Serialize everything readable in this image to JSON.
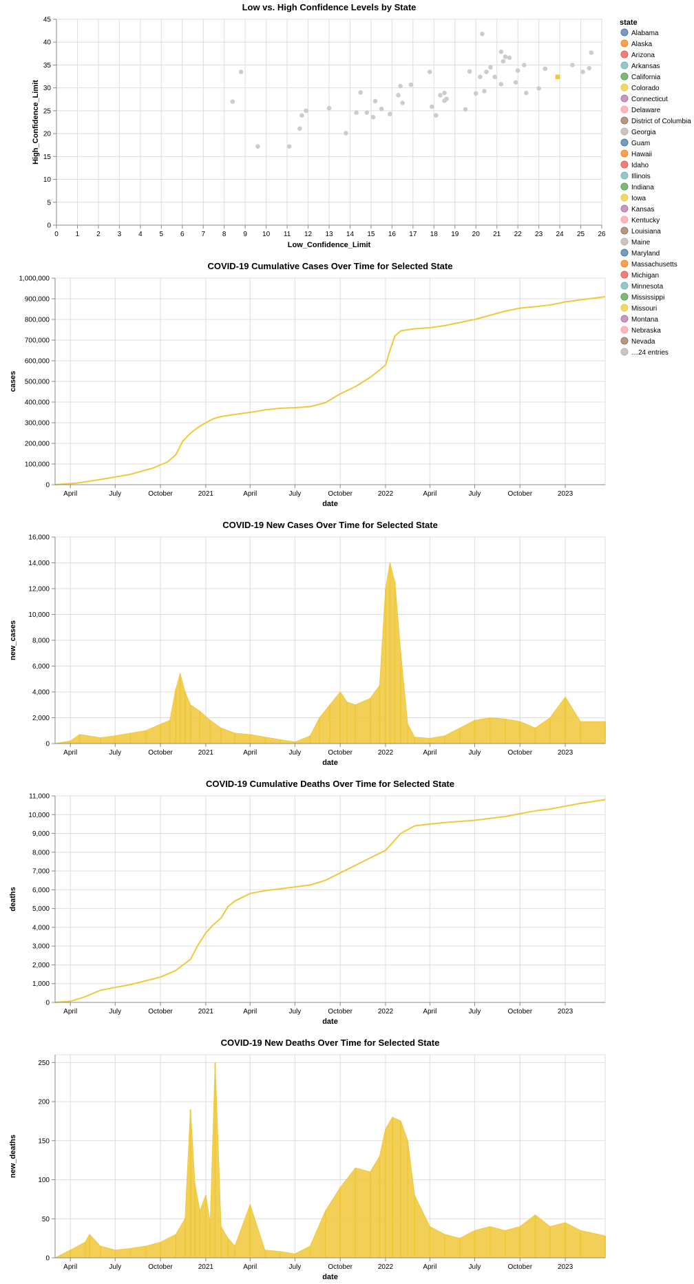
{
  "chart_data": [
    {
      "id": "scatter",
      "type": "scatter",
      "title": "Low vs. High Confidence Levels by State",
      "xlabel": "Low_Confidence_Limit",
      "ylabel": "High_Confidence_Limit",
      "xlim": [
        0,
        26
      ],
      "ylim": [
        0,
        45
      ],
      "xticks": [
        0,
        1,
        2,
        3,
        4,
        5,
        6,
        7,
        8,
        9,
        10,
        11,
        12,
        13,
        14,
        15,
        16,
        17,
        18,
        19,
        20,
        21,
        22,
        23,
        24,
        25,
        26
      ],
      "yticks": [
        0,
        5,
        10,
        15,
        20,
        25,
        30,
        35,
        40,
        45
      ],
      "point_color": "#cccccc",
      "highlight_color": "#f0c83a",
      "points": [
        [
          8.4,
          27
        ],
        [
          8.8,
          33.5
        ],
        [
          9.6,
          17.2
        ],
        [
          11.1,
          17.2
        ],
        [
          11.6,
          21.1
        ],
        [
          11.7,
          24
        ],
        [
          11.9,
          25
        ],
        [
          13,
          25.6
        ],
        [
          13.8,
          20.1
        ],
        [
          14.3,
          24.6
        ],
        [
          14.5,
          29
        ],
        [
          14.8,
          24.6
        ],
        [
          15.1,
          23.6
        ],
        [
          15.2,
          27.1
        ],
        [
          15.5,
          25.4
        ],
        [
          15.9,
          24.3
        ],
        [
          16.3,
          28.4
        ],
        [
          16.4,
          30.4
        ],
        [
          16.5,
          26.7
        ],
        [
          16.9,
          30.7
        ],
        [
          17.8,
          33.5
        ],
        [
          17.9,
          25.9
        ],
        [
          18.1,
          24
        ],
        [
          18.3,
          28.4
        ],
        [
          18.5,
          28.9
        ],
        [
          18.5,
          27.2
        ],
        [
          18.6,
          27.6
        ],
        [
          19.5,
          25.3
        ],
        [
          19.7,
          33.6
        ],
        [
          20,
          28.8
        ],
        [
          20.2,
          32.4
        ],
        [
          20.3,
          41.8
        ],
        [
          20.4,
          29.3
        ],
        [
          20.5,
          33.5
        ],
        [
          20.7,
          34.5
        ],
        [
          20.9,
          32.4
        ],
        [
          21.2,
          30.8
        ],
        [
          21.2,
          37.9
        ],
        [
          21.3,
          35.8
        ],
        [
          21.4,
          36.8
        ],
        [
          21.6,
          36.6
        ],
        [
          21.9,
          31.2
        ],
        [
          22,
          33.8
        ],
        [
          22.3,
          35
        ],
        [
          22.4,
          28.9
        ],
        [
          23,
          29.9
        ],
        [
          23.3,
          34.2
        ],
        [
          24.6,
          35
        ],
        [
          25.1,
          33.5
        ],
        [
          25.4,
          34.3
        ],
        [
          25.5,
          37.7
        ]
      ],
      "highlight_point": [
        23.9,
        32.4
      ],
      "legend": {
        "title": "state",
        "entries": [
          {
            "label": "Alabama",
            "color": "#4c78a8"
          },
          {
            "label": "Alaska",
            "color": "#f58518"
          },
          {
            "label": "Arizona",
            "color": "#e45756"
          },
          {
            "label": "Arkansas",
            "color": "#72b7b2"
          },
          {
            "label": "California",
            "color": "#54a24b"
          },
          {
            "label": "Colorado",
            "color": "#eeca3b"
          },
          {
            "label": "Connecticut",
            "color": "#b279a2"
          },
          {
            "label": "Delaware",
            "color": "#ff9da6"
          },
          {
            "label": "District of Columbia",
            "color": "#9d755d"
          },
          {
            "label": "Georgia",
            "color": "#bab0ac"
          },
          {
            "label": "Guam",
            "color": "#4c78a8"
          },
          {
            "label": "Hawaii",
            "color": "#f58518"
          },
          {
            "label": "Idaho",
            "color": "#e45756"
          },
          {
            "label": "Illinois",
            "color": "#72b7b2"
          },
          {
            "label": "Indiana",
            "color": "#54a24b"
          },
          {
            "label": "Iowa",
            "color": "#eeca3b"
          },
          {
            "label": "Kansas",
            "color": "#b279a2"
          },
          {
            "label": "Kentucky",
            "color": "#ff9da6"
          },
          {
            "label": "Louisiana",
            "color": "#9d755d"
          },
          {
            "label": "Maine",
            "color": "#bab0ac"
          },
          {
            "label": "Maryland",
            "color": "#4c78a8"
          },
          {
            "label": "Massachusetts",
            "color": "#f58518"
          },
          {
            "label": "Michigan",
            "color": "#e45756"
          },
          {
            "label": "Minnesota",
            "color": "#72b7b2"
          },
          {
            "label": "Mississippi",
            "color": "#54a24b"
          },
          {
            "label": "Missouri",
            "color": "#eeca3b"
          },
          {
            "label": "Montana",
            "color": "#b279a2"
          },
          {
            "label": "Nebraska",
            "color": "#ff9da6"
          },
          {
            "label": "Nevada",
            "color": "#9d755d"
          },
          {
            "label": "…24 entries",
            "color": "#bab0ac"
          }
        ]
      }
    },
    {
      "id": "cum_cases",
      "type": "line",
      "title": "COVID-19 Cumulative Cases Over Time for Selected State",
      "xlabel": "date",
      "ylabel": "cases",
      "xlim": [
        "2020-03-01",
        "2023-03-23"
      ],
      "ylim": [
        0,
        1000000
      ],
      "yticks": [
        0,
        100000,
        200000,
        300000,
        400000,
        500000,
        600000,
        700000,
        800000,
        900000,
        1000000
      ],
      "ytick_labels": [
        "0",
        "100,000",
        "200,000",
        "300,000",
        "400,000",
        "500,000",
        "600,000",
        "700,000",
        "800,000",
        "900,000",
        "1,000,000"
      ],
      "color": "#f0c83a",
      "x": [
        "2020-03-01",
        "2020-04-15",
        "2020-06-01",
        "2020-08-01",
        "2020-09-15",
        "2020-10-15",
        "2020-11-01",
        "2020-11-15",
        "2020-12-01",
        "2020-12-15",
        "2021-01-01",
        "2021-01-15",
        "2021-02-01",
        "2021-03-01",
        "2021-04-01",
        "2021-05-01",
        "2021-06-01",
        "2021-07-01",
        "2021-08-01",
        "2021-09-01",
        "2021-10-01",
        "2021-11-01",
        "2021-12-01",
        "2021-12-20",
        "2022-01-01",
        "2022-01-10",
        "2022-01-20",
        "2022-02-01",
        "2022-03-01",
        "2022-04-01",
        "2022-05-01",
        "2022-07-01",
        "2022-09-01",
        "2022-10-01",
        "2022-11-01",
        "2022-12-01",
        "2023-01-01",
        "2023-02-01",
        "2023-03-23"
      ],
      "y": [
        0,
        8000,
        25000,
        50000,
        80000,
        110000,
        145000,
        210000,
        250000,
        275000,
        300000,
        318000,
        330000,
        340000,
        350000,
        362000,
        370000,
        373000,
        378000,
        397000,
        440000,
        475000,
        520000,
        555000,
        580000,
        650000,
        720000,
        745000,
        755000,
        760000,
        770000,
        800000,
        840000,
        855000,
        862000,
        870000,
        885000,
        895000,
        910000
      ]
    },
    {
      "id": "new_cases",
      "type": "bar",
      "title": "COVID-19 New Cases Over Time for Selected State",
      "xlabel": "date",
      "ylabel": "new_cases",
      "xlim": [
        "2020-03-01",
        "2023-03-23"
      ],
      "ylim": [
        0,
        16000
      ],
      "yticks": [
        0,
        2000,
        4000,
        6000,
        8000,
        10000,
        12000,
        14000,
        16000
      ],
      "ytick_labels": [
        "0",
        "2,000",
        "4,000",
        "6,000",
        "8,000",
        "10,000",
        "12,000",
        "14,000",
        "16,000"
      ],
      "color": "#f0c83a",
      "x": [
        "2020-03-01",
        "2020-04-01",
        "2020-04-20",
        "2020-06-01",
        "2020-07-01",
        "2020-08-01",
        "2020-09-01",
        "2020-10-01",
        "2020-10-20",
        "2020-11-01",
        "2020-11-10",
        "2020-11-20",
        "2020-12-01",
        "2020-12-20",
        "2021-01-10",
        "2021-02-01",
        "2021-03-01",
        "2021-04-01",
        "2021-05-01",
        "2021-06-01",
        "2021-07-01",
        "2021-08-01",
        "2021-08-20",
        "2021-09-10",
        "2021-10-01",
        "2021-10-15",
        "2021-11-01",
        "2021-12-01",
        "2021-12-20",
        "2022-01-01",
        "2022-01-10",
        "2022-01-20",
        "2022-02-01",
        "2022-02-15",
        "2022-03-01",
        "2022-04-01",
        "2022-05-01",
        "2022-06-01",
        "2022-07-01",
        "2022-08-01",
        "2022-09-01",
        "2022-10-01",
        "2022-11-01",
        "2022-12-01",
        "2023-01-01",
        "2023-02-01",
        "2023-03-23"
      ],
      "y": [
        0,
        200,
        700,
        450,
        600,
        800,
        1000,
        1500,
        1800,
        4200,
        5400,
        4000,
        3000,
        2500,
        1800,
        1200,
        800,
        700,
        500,
        300,
        120,
        600,
        2000,
        3000,
        4000,
        3200,
        3000,
        3500,
        4500,
        12000,
        14000,
        12500,
        7000,
        1500,
        500,
        400,
        600,
        1200,
        1800,
        2000,
        1900,
        1700,
        1200,
        2000,
        3600,
        1700,
        1700
      ]
    },
    {
      "id": "cum_deaths",
      "type": "line",
      "title": "COVID-19 Cumulative Deaths Over Time for Selected State",
      "xlabel": "date",
      "ylabel": "deaths",
      "xlim": [
        "2020-03-01",
        "2023-03-23"
      ],
      "ylim": [
        0,
        11000
      ],
      "yticks": [
        0,
        1000,
        2000,
        3000,
        4000,
        5000,
        6000,
        7000,
        8000,
        9000,
        10000,
        11000
      ],
      "ytick_labels": [
        "0",
        "1,000",
        "2,000",
        "3,000",
        "4,000",
        "5,000",
        "6,000",
        "7,000",
        "8,000",
        "9,000",
        "10,000",
        "11,000"
      ],
      "color": "#f0c83a",
      "x": [
        "2020-03-01",
        "2020-04-01",
        "2020-05-01",
        "2020-06-01",
        "2020-07-01",
        "2020-08-01",
        "2020-09-01",
        "2020-10-01",
        "2020-11-01",
        "2020-12-01",
        "2020-12-15",
        "2021-01-01",
        "2021-01-15",
        "2021-02-01",
        "2021-02-15",
        "2021-03-01",
        "2021-04-01",
        "2021-05-01",
        "2021-06-01",
        "2021-07-01",
        "2021-08-01",
        "2021-09-01",
        "2021-10-01",
        "2021-11-01",
        "2021-12-01",
        "2022-01-01",
        "2022-01-15",
        "2022-02-01",
        "2022-03-01",
        "2022-04-01",
        "2022-05-01",
        "2022-07-01",
        "2022-09-01",
        "2022-10-01",
        "2022-11-01",
        "2022-12-01",
        "2023-01-01",
        "2023-02-01",
        "2023-03-23"
      ],
      "y": [
        0,
        60,
        300,
        650,
        800,
        950,
        1150,
        1350,
        1700,
        2300,
        3000,
        3700,
        4100,
        4500,
        5100,
        5400,
        5800,
        5950,
        6050,
        6150,
        6250,
        6500,
        6900,
        7300,
        7700,
        8100,
        8500,
        9000,
        9400,
        9500,
        9580,
        9700,
        9900,
        10050,
        10200,
        10300,
        10450,
        10600,
        10800
      ]
    },
    {
      "id": "new_deaths",
      "type": "bar",
      "title": "COVID-19 New Deaths Over Time for Selected State",
      "xlabel": "date",
      "ylabel": "new_deaths",
      "xlim": [
        "2020-03-01",
        "2023-03-23"
      ],
      "ylim": [
        0,
        260
      ],
      "yticks": [
        0,
        50,
        100,
        150,
        200,
        250
      ],
      "ytick_labels": [
        "0",
        "50",
        "100",
        "150",
        "200",
        "250"
      ],
      "color": "#f0c83a",
      "x": [
        "2020-03-01",
        "2020-04-01",
        "2020-05-01",
        "2020-05-10",
        "2020-06-01",
        "2020-07-01",
        "2020-08-01",
        "2020-09-01",
        "2020-10-01",
        "2020-11-01",
        "2020-11-20",
        "2020-12-01",
        "2020-12-10",
        "2020-12-20",
        "2021-01-01",
        "2021-01-10",
        "2021-01-20",
        "2021-02-01",
        "2021-02-15",
        "2021-03-01",
        "2021-04-01",
        "2021-05-01",
        "2021-06-01",
        "2021-07-01",
        "2021-08-01",
        "2021-09-01",
        "2021-10-01",
        "2021-11-01",
        "2021-12-01",
        "2021-12-20",
        "2022-01-01",
        "2022-01-15",
        "2022-02-01",
        "2022-02-15",
        "2022-03-01",
        "2022-04-01",
        "2022-05-01",
        "2022-06-01",
        "2022-07-01",
        "2022-08-01",
        "2022-09-01",
        "2022-10-01",
        "2022-11-01",
        "2022-12-01",
        "2023-01-01",
        "2023-02-01",
        "2023-03-23"
      ],
      "y": [
        0,
        10,
        20,
        30,
        15,
        10,
        12,
        15,
        20,
        30,
        50,
        190,
        95,
        60,
        80,
        45,
        250,
        40,
        25,
        15,
        68,
        10,
        8,
        5,
        15,
        60,
        90,
        115,
        110,
        130,
        165,
        180,
        175,
        150,
        80,
        40,
        30,
        25,
        35,
        40,
        35,
        40,
        55,
        40,
        45,
        35,
        28
      ]
    }
  ]
}
